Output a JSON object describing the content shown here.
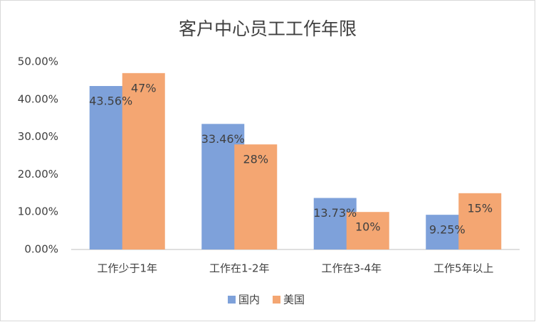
{
  "chart_data": {
    "type": "bar",
    "title": "客户中心员工工作年限",
    "categories": [
      "工作少于1年",
      "工作在1-2年",
      "工作在3-4年",
      "工作5年以上"
    ],
    "series": [
      {
        "name": "国内",
        "color": "#7ea1da",
        "values": [
          43.56,
          33.46,
          13.73,
          9.25
        ],
        "value_labels": [
          "43.56%",
          "33.46%",
          "13.73%",
          "9.25%"
        ]
      },
      {
        "name": "美国",
        "color": "#f4a672",
        "values": [
          47,
          28,
          10,
          15
        ],
        "value_labels": [
          "47%",
          "28%",
          "10%",
          "15%"
        ]
      }
    ],
    "ylim": [
      0,
      50
    ],
    "yticks": [
      {
        "value": 0,
        "label": "0.00%"
      },
      {
        "value": 10,
        "label": "10.00%"
      },
      {
        "value": 20,
        "label": "20.00%"
      },
      {
        "value": 30,
        "label": "30.00%"
      },
      {
        "value": 40,
        "label": "40.00%"
      },
      {
        "value": 50,
        "label": "50.00%"
      }
    ],
    "grid": false,
    "legend": "bottom"
  }
}
